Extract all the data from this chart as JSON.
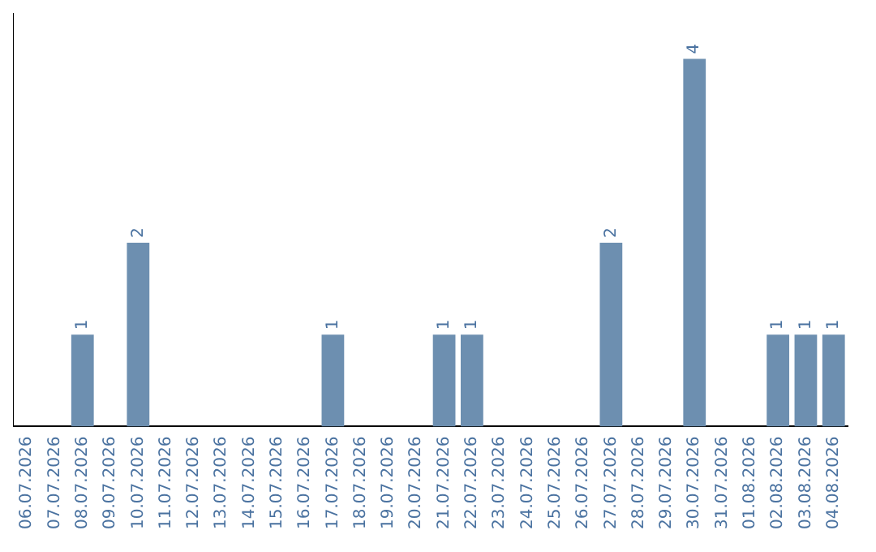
{
  "chart_data": {
    "type": "bar",
    "categories": [
      "06.07.2026",
      "07.07.2026",
      "08.07.2026",
      "09.07.2026",
      "10.07.2026",
      "11.07.2026",
      "12.07.2026",
      "13.07.2026",
      "14.07.2026",
      "15.07.2026",
      "16.07.2026",
      "17.07.2026",
      "18.07.2026",
      "19.07.2026",
      "20.07.2026",
      "21.07.2026",
      "22.07.2026",
      "23.07.2026",
      "24.07.2026",
      "25.07.2026",
      "26.07.2026",
      "27.07.2026",
      "28.07.2026",
      "29.07.2026",
      "30.07.2026",
      "31.07.2026",
      "01.08.2026",
      "02.08.2026",
      "03.08.2026",
      "04.08.2026"
    ],
    "values": [
      0,
      0,
      1,
      0,
      2,
      0,
      0,
      0,
      0,
      0,
      0,
      1,
      0,
      0,
      0,
      1,
      1,
      0,
      0,
      0,
      0,
      2,
      0,
      0,
      4,
      0,
      0,
      1,
      1,
      1
    ],
    "value_labels": [
      null,
      null,
      "1",
      null,
      "2",
      null,
      null,
      null,
      null,
      null,
      null,
      "1",
      null,
      null,
      null,
      "1",
      "1",
      null,
      null,
      null,
      null,
      "2",
      null,
      null,
      "4",
      null,
      null,
      "1",
      "1",
      "1"
    ],
    "color": "#6d8fb0",
    "grid": false,
    "legend": false,
    "tick_labels": "x"
  }
}
